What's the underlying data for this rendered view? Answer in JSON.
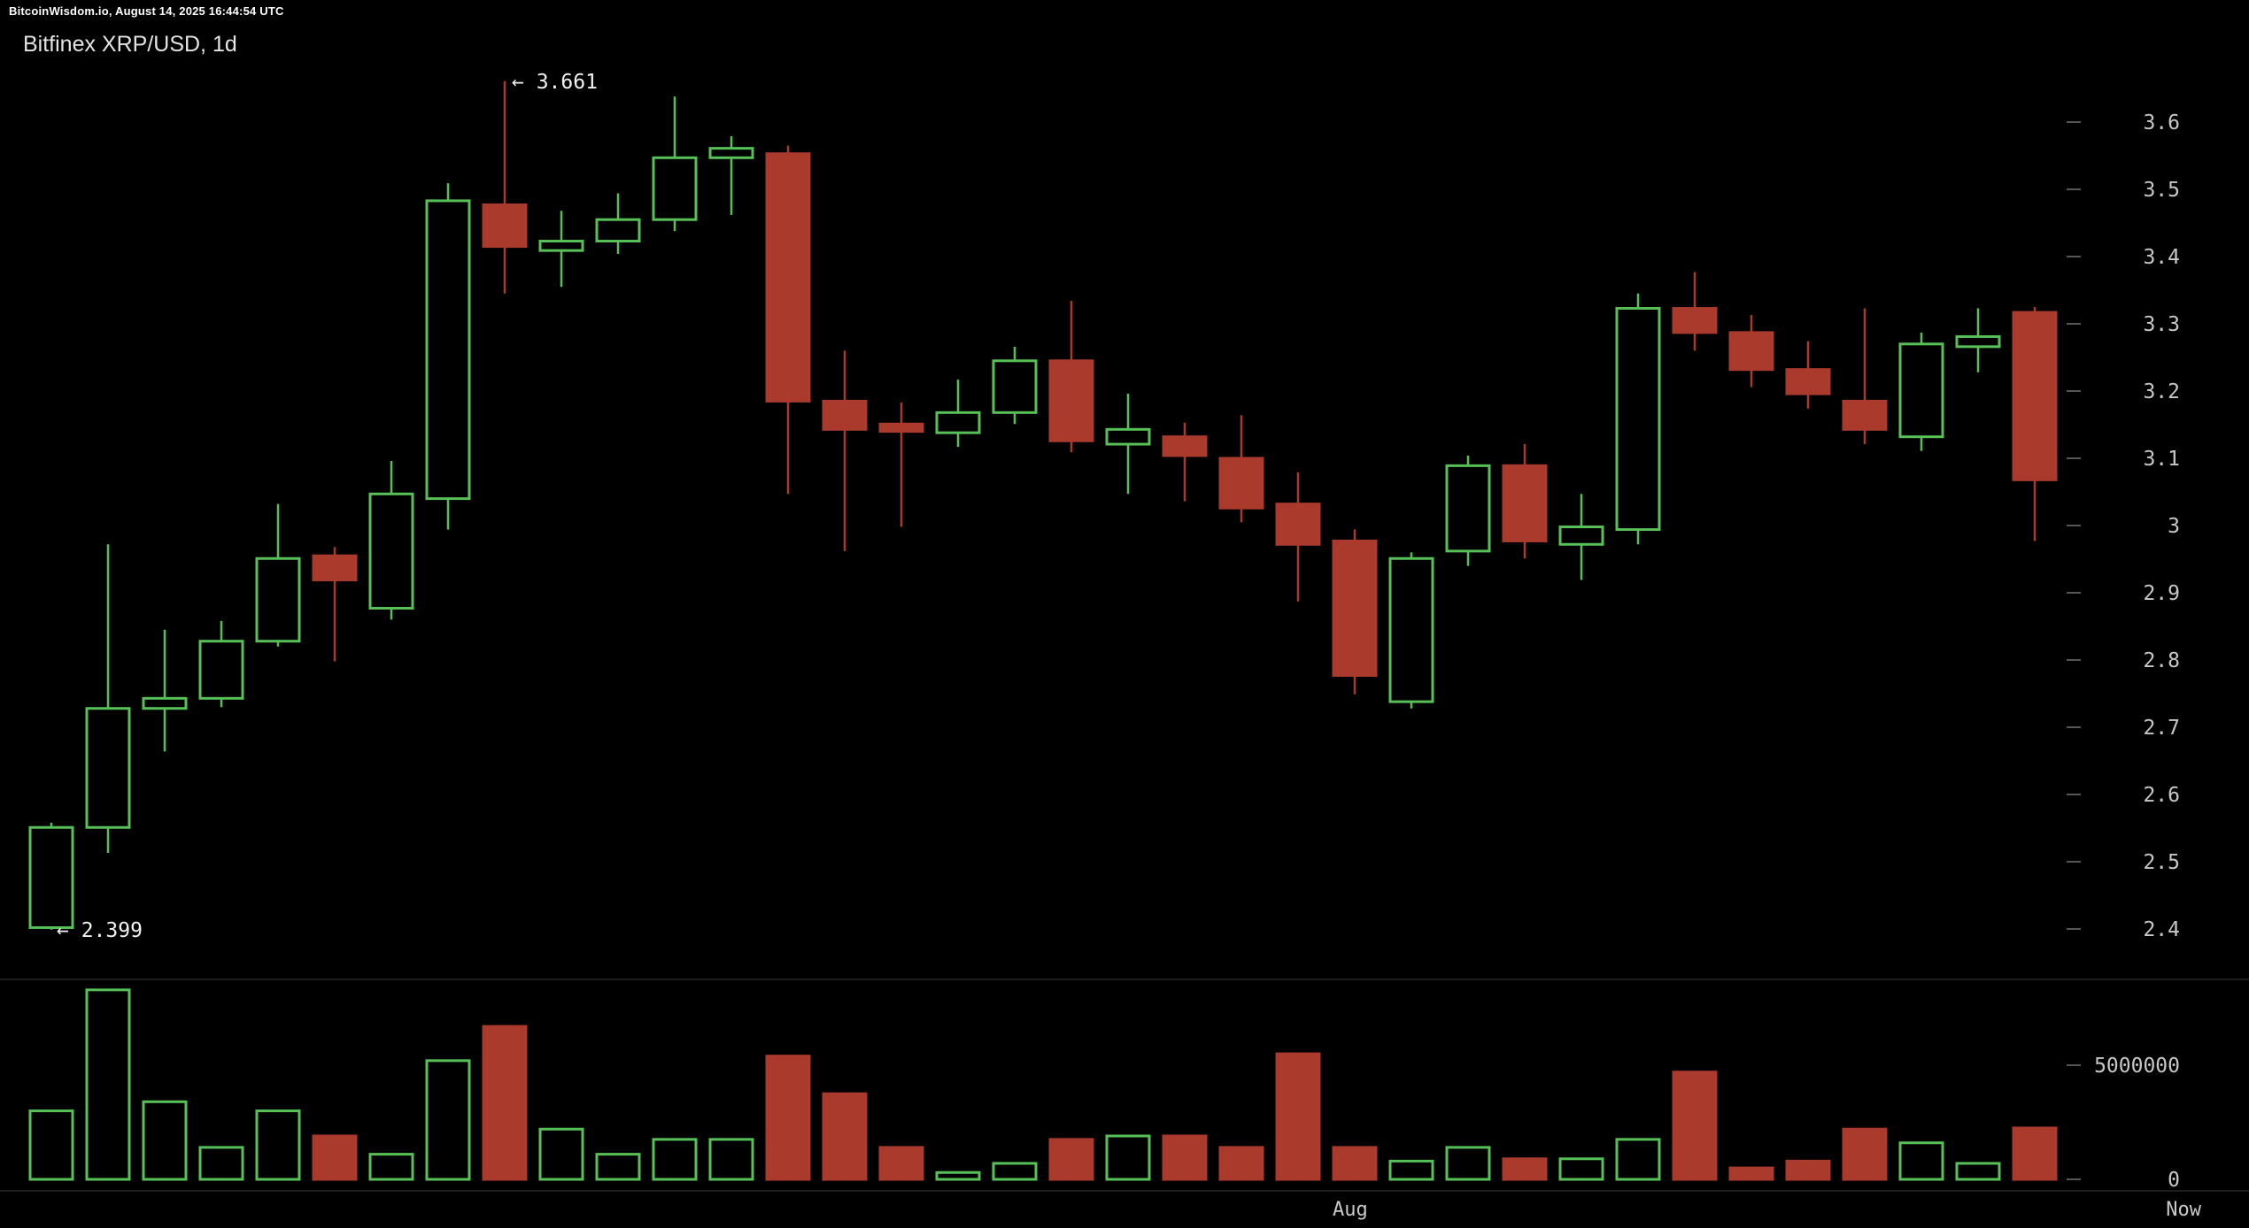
{
  "topbar": {
    "text": "BitcoinWisdom.io, August 14, 2025 16:44:54 UTC"
  },
  "chart": {
    "title": "Bitfinex XRP/USD, 1d",
    "annotations": {
      "high": "← 3.661",
      "low": "← 2.399"
    },
    "x_axis": {
      "month_label": "Aug",
      "now_label": "Now"
    }
  },
  "colors": {
    "up": "#57c057",
    "down": "#a93a2c",
    "background": "#000000",
    "axis_text": "#c8c8c8",
    "tick_dash": "#565656",
    "divider": "#1e1e1e",
    "annotation_text": "#f2f2f2"
  },
  "chart_data": {
    "type": "candlestick",
    "title": "Bitfinex XRP/USD, 1d",
    "exchange": "Bitfinex",
    "pair": "XRP/USD",
    "interval": "1d",
    "session_high": 3.661,
    "session_low": 2.399,
    "price_axis_ticks": [
      "3.6",
      "3.5",
      "3.4",
      "3.3",
      "3.2",
      "3.1",
      "3",
      "2.9",
      "2.8",
      "2.7",
      "2.6",
      "2.5",
      "2.4"
    ],
    "volume_axis_ticks": [
      "5000000",
      "0"
    ],
    "x_labels": [
      "Aug",
      "Now"
    ],
    "legend_position": "none",
    "grid": false,
    "price_range": [
      2.35,
      3.7
    ],
    "volume_range": [
      0,
      8600000
    ],
    "candles": [
      {
        "o": 2.402,
        "h": 2.558,
        "l": 2.399,
        "c": 2.551,
        "v": 3000000
      },
      {
        "o": 2.551,
        "h": 2.972,
        "l": 2.513,
        "c": 2.728,
        "v": 8300000
      },
      {
        "o": 2.728,
        "h": 2.845,
        "l": 2.664,
        "c": 2.743,
        "v": 3400000
      },
      {
        "o": 2.743,
        "h": 2.858,
        "l": 2.73,
        "c": 2.828,
        "v": 1400000
      },
      {
        "o": 2.828,
        "h": 3.032,
        "l": 2.82,
        "c": 2.951,
        "v": 3000000
      },
      {
        "o": 2.955,
        "h": 2.968,
        "l": 2.798,
        "c": 2.919,
        "v": 1900000
      },
      {
        "o": 2.877,
        "h": 3.096,
        "l": 2.86,
        "c": 3.047,
        "v": 1100000
      },
      {
        "o": 3.04,
        "h": 3.509,
        "l": 2.994,
        "c": 3.483,
        "v": 5200000
      },
      {
        "o": 3.477,
        "h": 3.661,
        "l": 3.345,
        "c": 3.415,
        "v": 6700000
      },
      {
        "o": 3.409,
        "h": 3.468,
        "l": 3.355,
        "c": 3.423,
        "v": 2200000
      },
      {
        "o": 3.423,
        "h": 3.494,
        "l": 3.404,
        "c": 3.455,
        "v": 1100000
      },
      {
        "o": 3.455,
        "h": 3.638,
        "l": 3.438,
        "c": 3.547,
        "v": 1750000
      },
      {
        "o": 3.547,
        "h": 3.579,
        "l": 3.462,
        "c": 3.561,
        "v": 1750000
      },
      {
        "o": 3.553,
        "h": 3.565,
        "l": 3.047,
        "c": 3.185,
        "v": 5400000
      },
      {
        "o": 3.185,
        "h": 3.26,
        "l": 2.962,
        "c": 3.143,
        "v": 3750000
      },
      {
        "o": 3.151,
        "h": 3.183,
        "l": 2.998,
        "c": 3.14,
        "v": 1400000
      },
      {
        "o": 3.138,
        "h": 3.217,
        "l": 3.117,
        "c": 3.168,
        "v": 300000
      },
      {
        "o": 3.168,
        "h": 3.266,
        "l": 3.151,
        "c": 3.245,
        "v": 700000
      },
      {
        "o": 3.245,
        "h": 3.334,
        "l": 3.109,
        "c": 3.126,
        "v": 1750000
      },
      {
        "o": 3.121,
        "h": 3.196,
        "l": 3.047,
        "c": 3.143,
        "v": 1900000
      },
      {
        "o": 3.132,
        "h": 3.153,
        "l": 3.036,
        "c": 3.104,
        "v": 1900000
      },
      {
        "o": 3.1,
        "h": 3.164,
        "l": 3.005,
        "c": 3.026,
        "v": 1400000
      },
      {
        "o": 3.032,
        "h": 3.079,
        "l": 2.887,
        "c": 2.972,
        "v": 5500000
      },
      {
        "o": 2.977,
        "h": 2.994,
        "l": 2.749,
        "c": 2.777,
        "v": 1400000
      },
      {
        "o": 2.738,
        "h": 2.96,
        "l": 2.728,
        "c": 2.951,
        "v": 800000
      },
      {
        "o": 2.962,
        "h": 3.104,
        "l": 2.94,
        "c": 3.089,
        "v": 1400000
      },
      {
        "o": 3.089,
        "h": 3.121,
        "l": 2.951,
        "c": 2.977,
        "v": 900000
      },
      {
        "o": 2.972,
        "h": 3.047,
        "l": 2.919,
        "c": 2.998,
        "v": 900000
      },
      {
        "o": 2.994,
        "h": 3.345,
        "l": 2.972,
        "c": 3.323,
        "v": 1750000
      },
      {
        "o": 3.323,
        "h": 3.377,
        "l": 3.26,
        "c": 3.287,
        "v": 4700000
      },
      {
        "o": 3.287,
        "h": 3.313,
        "l": 3.206,
        "c": 3.232,
        "v": 500000
      },
      {
        "o": 3.232,
        "h": 3.274,
        "l": 3.174,
        "c": 3.196,
        "v": 800000
      },
      {
        "o": 3.185,
        "h": 3.323,
        "l": 3.121,
        "c": 3.143,
        "v": 2200000
      },
      {
        "o": 3.132,
        "h": 3.287,
        "l": 3.111,
        "c": 3.27,
        "v": 1600000
      },
      {
        "o": 3.266,
        "h": 3.323,
        "l": 3.228,
        "c": 3.281,
        "v": 700000
      },
      {
        "o": 3.317,
        "h": 3.325,
        "l": 2.977,
        "c": 3.068,
        "v": 2250000
      }
    ]
  }
}
